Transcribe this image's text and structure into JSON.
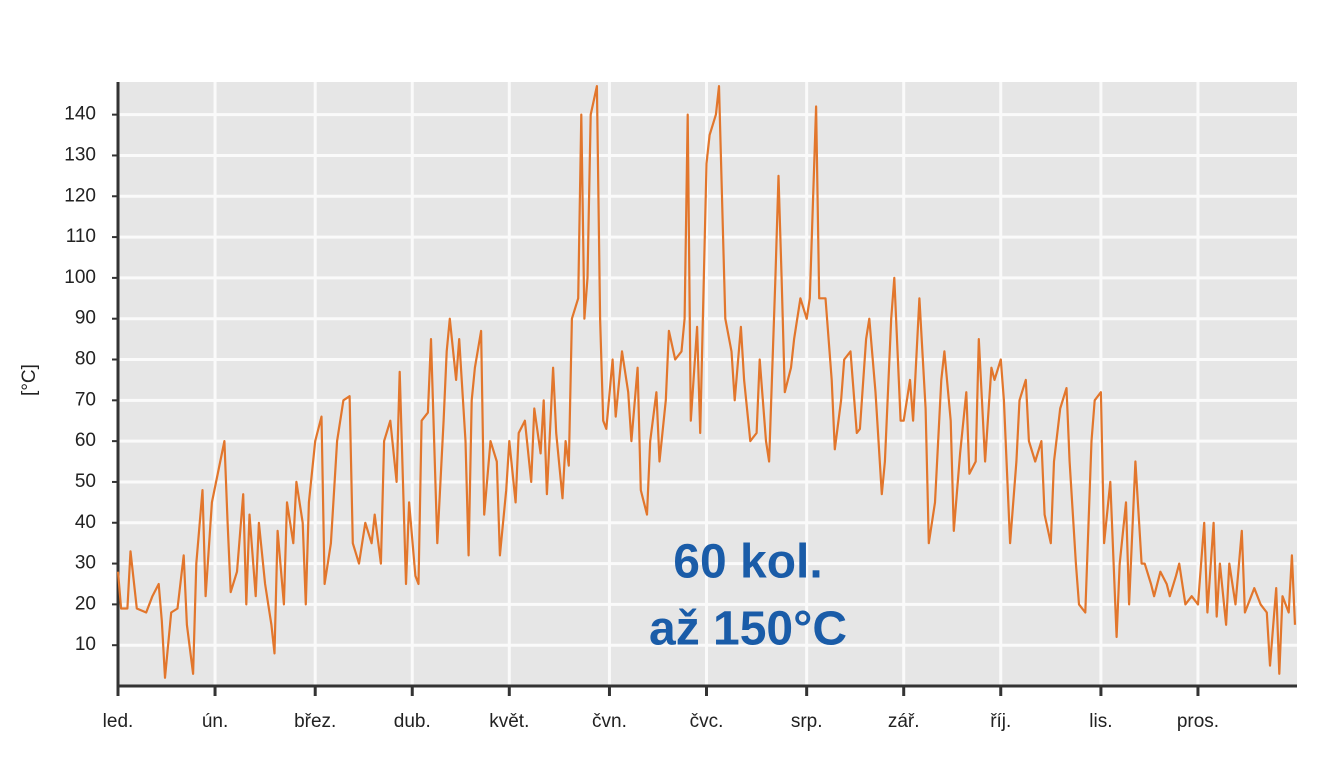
{
  "chart_data": {
    "type": "line",
    "y_label": "[°C]",
    "annotations": [
      "60 kol.",
      "až 150°C"
    ],
    "color": "#e2762c",
    "grid": true,
    "xlim": [
      0,
      376
    ],
    "ylim": [
      0,
      148
    ],
    "xticks": [
      {
        "value": 0,
        "label": "led."
      },
      {
        "value": 31,
        "label": "ún."
      },
      {
        "value": 63,
        "label": "břez."
      },
      {
        "value": 94,
        "label": "dub."
      },
      {
        "value": 125,
        "label": "květ."
      },
      {
        "value": 157,
        "label": "čvn."
      },
      {
        "value": 188,
        "label": "čvc."
      },
      {
        "value": 220,
        "label": "srp."
      },
      {
        "value": 251,
        "label": "zář."
      },
      {
        "value": 282,
        "label": "říj."
      },
      {
        "value": 314,
        "label": "lis."
      },
      {
        "value": 345,
        "label": "pros."
      }
    ],
    "yticks": [
      10,
      20,
      30,
      40,
      50,
      60,
      70,
      80,
      90,
      100,
      110,
      120,
      130,
      140
    ],
    "x": [
      0,
      1,
      3,
      4,
      6,
      9,
      11,
      13,
      14,
      15,
      17,
      19,
      21,
      22,
      24,
      25,
      27,
      28,
      30,
      34,
      35,
      36,
      38,
      40,
      41,
      42,
      44,
      45,
      47,
      49,
      50,
      51,
      53,
      54,
      56,
      57,
      59,
      60,
      61,
      63,
      65,
      66,
      68,
      70,
      72,
      74,
      75,
      77,
      79,
      81,
      82,
      84,
      85,
      87,
      89,
      90,
      92,
      93,
      95,
      96,
      97,
      99,
      100,
      102,
      104,
      105,
      106,
      108,
      109,
      111,
      112,
      113,
      114,
      116,
      117,
      119,
      121,
      122,
      124,
      125,
      127,
      128,
      130,
      132,
      133,
      135,
      136,
      137,
      139,
      140,
      142,
      143,
      144,
      145,
      147,
      148,
      149,
      150,
      151,
      153,
      154,
      155,
      156,
      158,
      159,
      161,
      163,
      164,
      166,
      167,
      169,
      170,
      172,
      173,
      175,
      176,
      178,
      180,
      181,
      182,
      183,
      185,
      186,
      188,
      189,
      191,
      192,
      193,
      194,
      196,
      197,
      199,
      200,
      202,
      204,
      205,
      207,
      208,
      210,
      211,
      212,
      213,
      214,
      215,
      216,
      218,
      220,
      221,
      223,
      224,
      226,
      228,
      229,
      231,
      232,
      234,
      236,
      237,
      239,
      240,
      242,
      244,
      245,
      247,
      248,
      250,
      251,
      253,
      254,
      256,
      258,
      259,
      261,
      263,
      264,
      266,
      267,
      269,
      271,
      272,
      274,
      275,
      277,
      279,
      280,
      282,
      283,
      285,
      287,
      288,
      290,
      291,
      293,
      295,
      296,
      298,
      299,
      301,
      303,
      304,
      306,
      307,
      309,
      311,
      312,
      314,
      315,
      317,
      319,
      320,
      322,
      323,
      325,
      327,
      328,
      330,
      331,
      333,
      335,
      336,
      338,
      339,
      341,
      343,
      345,
      347,
      348,
      350,
      351,
      352,
      354,
      355,
      357,
      359,
      360,
      362,
      363,
      365,
      367,
      368,
      370,
      371,
      372,
      374,
      375,
      376
    ],
    "values": [
      28,
      19,
      19,
      33,
      19,
      18,
      22,
      25,
      16,
      2,
      18,
      19,
      32,
      15,
      3,
      30,
      48,
      22,
      45,
      60,
      40,
      23,
      28,
      47,
      20,
      42,
      22,
      40,
      25,
      15,
      8,
      38,
      20,
      45,
      35,
      50,
      40,
      20,
      45,
      60,
      66,
      25,
      35,
      60,
      70,
      71,
      35,
      30,
      40,
      35,
      42,
      30,
      60,
      65,
      50,
      77,
      25,
      45,
      27,
      25,
      65,
      67,
      85,
      35,
      65,
      82,
      90,
      75,
      85,
      60,
      32,
      70,
      78,
      87,
      42,
      60,
      55,
      32,
      48,
      60,
      45,
      62,
      65,
      50,
      68,
      57,
      70,
      47,
      78,
      62,
      46,
      60,
      54,
      90,
      95,
      140,
      90,
      100,
      140,
      147,
      90,
      65,
      63,
      80,
      66,
      82,
      72,
      60,
      78,
      48,
      42,
      60,
      72,
      55,
      70,
      87,
      80,
      82,
      90,
      140,
      65,
      88,
      62,
      128,
      135,
      140,
      147,
      118,
      90,
      82,
      70,
      88,
      75,
      60,
      62,
      80,
      60,
      55,
      100,
      125,
      100,
      72,
      75,
      78,
      85,
      95,
      90,
      95,
      142,
      95,
      95,
      75,
      58,
      70,
      80,
      82,
      62,
      63,
      85,
      90,
      72,
      47,
      55,
      90,
      100,
      65,
      65,
      75,
      65,
      95,
      68,
      35,
      45,
      75,
      82,
      65,
      38,
      57,
      72,
      52,
      55,
      85,
      55,
      78,
      75,
      80,
      70,
      35,
      55,
      70,
      75,
      60,
      55,
      60,
      42,
      35,
      55,
      68,
      73,
      55,
      30,
      20,
      18,
      60,
      70,
      72,
      35,
      50,
      12,
      30,
      45,
      20,
      55,
      30,
      30,
      25,
      22,
      28,
      25,
      22,
      27,
      30,
      20,
      22,
      20,
      40,
      18,
      40,
      17,
      30,
      15,
      30,
      20,
      38,
      18,
      22,
      24,
      20,
      18,
      5,
      24,
      3,
      22,
      18,
      32,
      15
    ]
  }
}
